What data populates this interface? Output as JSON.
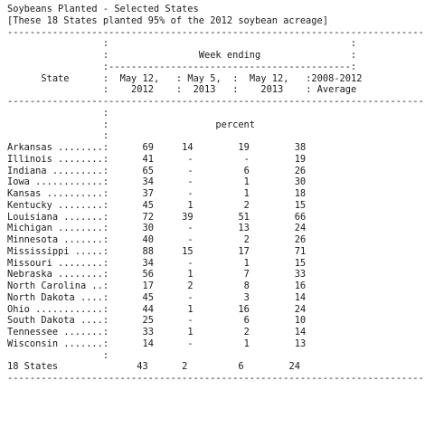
{
  "report": {
    "title": "Soybeans Planted - Selected States",
    "subtitle": "[These 18 States planted 95% of the 2012 soybean acreage]",
    "week_ending_label": "Week ending",
    "state_label": "State",
    "units_label": "percent",
    "columns": [
      {
        "line1": "May 12,",
        "line2": "2012"
      },
      {
        "line1": "May 5,",
        "line2": "2013"
      },
      {
        "line1": "May 12,",
        "line2": "2013"
      },
      {
        "line1": "2008-2012",
        "line2": "Average"
      }
    ],
    "rows": [
      {
        "state": "Arkansas",
        "values": [
          "69",
          "14",
          "19",
          "38"
        ]
      },
      {
        "state": "Illinois",
        "values": [
          "41",
          "-",
          "-",
          "19"
        ]
      },
      {
        "state": "Indiana",
        "values": [
          "65",
          "-",
          "6",
          "26"
        ]
      },
      {
        "state": "Iowa",
        "values": [
          "34",
          "-",
          "1",
          "30"
        ]
      },
      {
        "state": "Kansas",
        "values": [
          "37",
          "-",
          "1",
          "18"
        ]
      },
      {
        "state": "Kentucky",
        "values": [
          "45",
          "1",
          "2",
          "15"
        ]
      },
      {
        "state": "Louisiana",
        "values": [
          "72",
          "39",
          "51",
          "66"
        ]
      },
      {
        "state": "Michigan",
        "values": [
          "30",
          "-",
          "13",
          "24"
        ]
      },
      {
        "state": "Minnesota",
        "values": [
          "40",
          "-",
          "2",
          "26"
        ]
      },
      {
        "state": "Mississippi",
        "values": [
          "88",
          "15",
          "17",
          "71"
        ]
      },
      {
        "state": "Missouri",
        "values": [
          "34",
          "-",
          "1",
          "15"
        ]
      },
      {
        "state": "Nebraska",
        "values": [
          "56",
          "1",
          "7",
          "33"
        ]
      },
      {
        "state": "North Carolina",
        "values": [
          "17",
          "2",
          "8",
          "16"
        ]
      },
      {
        "state": "North Dakota",
        "values": [
          "45",
          "-",
          "3",
          "14"
        ]
      },
      {
        "state": "Ohio",
        "values": [
          "44",
          "1",
          "16",
          "24"
        ]
      },
      {
        "state": "South Dakota",
        "values": [
          "25",
          "-",
          "6",
          "10"
        ]
      },
      {
        "state": "Tennessee",
        "values": [
          "33",
          "1",
          "2",
          "14"
        ]
      },
      {
        "state": "Wisconsin",
        "values": [
          "14",
          "-",
          "1",
          "13"
        ]
      }
    ],
    "total": {
      "state": "18 States",
      "values": [
        "43",
        "2",
        "6",
        "24"
      ]
    }
  }
}
